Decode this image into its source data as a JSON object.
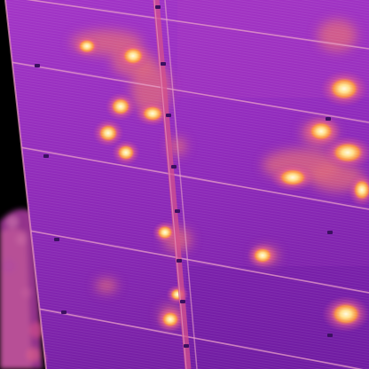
{
  "image": {
    "kind": "thermal-infrared-photo",
    "subject": "solar-panel-array",
    "palette": {
      "background": "#000000",
      "cool": "#7a1fae",
      "panel_base": "#9b2fc8",
      "warm": "#d0478c",
      "hot": "#ff9a3a",
      "hottest": "#fff6c8",
      "frame_line": "#e8a0c8"
    }
  }
}
